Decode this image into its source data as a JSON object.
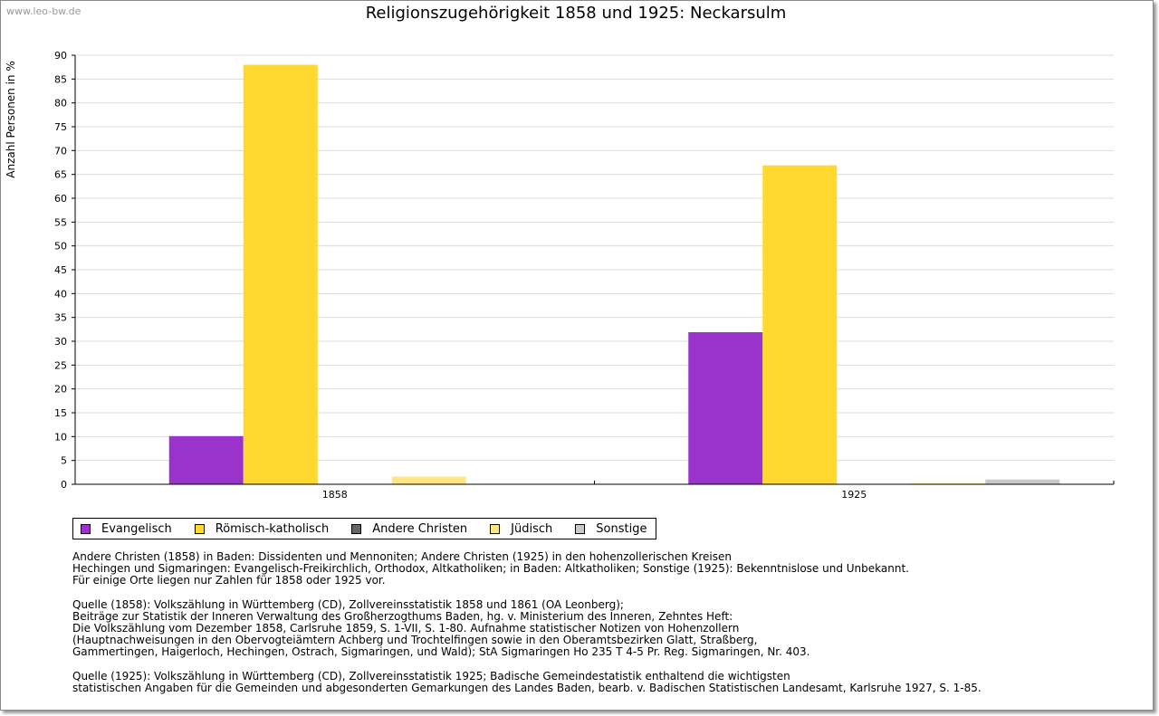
{
  "watermark": "www.leo-bw.de",
  "chart_data": {
    "type": "bar",
    "title": "Religionszugehörigkeit 1858 und 1925: Neckarsulm",
    "xlabel": "",
    "ylabel": "Anzahl Personen in %",
    "ylim": [
      0,
      90
    ],
    "ytick_step": 5,
    "grid": true,
    "categories": [
      "1858",
      "1925"
    ],
    "series": [
      {
        "name": "Evangelisch",
        "color": "#9933cc",
        "values": [
          10.1,
          31.9
        ]
      },
      {
        "name": "Römisch-katholisch",
        "color": "#ffd830",
        "values": [
          88.0,
          66.9
        ]
      },
      {
        "name": "Andere Christen",
        "color": "#666666",
        "values": [
          0.0,
          0.0
        ]
      },
      {
        "name": "Jüdisch",
        "color": "#ffe680",
        "values": [
          1.6,
          0.2
        ]
      },
      {
        "name": "Sonstige",
        "color": "#c8c8c8",
        "values": [
          0.0,
          1.0
        ]
      }
    ],
    "legend_position": "bottom-left"
  },
  "notes": [
    [
      "Andere Christen (1858) in Baden: Dissidenten und Mennoniten; Andere Christen (1925) in den hohenzollerischen Kreisen",
      "Hechingen und Sigmaringen: Evangelisch-Freikirchlich, Orthodox, Altkatholiken; in Baden: Altkatholiken; Sonstige (1925): Bekenntnislose und Unbekannt.",
      "Für einige Orte liegen nur Zahlen für 1858 oder 1925 vor."
    ],
    [
      "Quelle (1858): Volkszählung in Württemberg (CD), Zollvereinsstatistik 1858 und 1861 (OA Leonberg);",
      "Beiträge zur Statistik der Inneren Verwaltung des Großherzogthums Baden, hg. v. Ministerium des Inneren, Zehntes Heft:",
      "Die Volkszählung vom Dezember 1858, Carlsruhe 1859, S. 1-VII, S. 1-80. Aufnahme statistischer Notizen von Hohenzollern",
      "(Hauptnachweisungen in den Obervogteiämtern Achberg und Trochtelfingen sowie in den Oberamtsbezirken Glatt, Straßberg,",
      "Gammertingen, Haigerloch, Hechingen, Ostrach, Sigmaringen, und Wald); StA Sigmaringen Ho 235 T 4-5 Pr. Reg. Sigmaringen, Nr. 403."
    ],
    [
      "Quelle (1925): Volkszählung in Württemberg (CD), Zollvereinsstatistik 1925; Badische Gemeindestatistik enthaltend die wichtigsten",
      "statistischen Angaben für die Gemeinden und abgesonderten Gemarkungen des Landes Baden, bearb. v. Badischen Statistischen Landesamt, Karlsruhe 1927, S. 1-85."
    ]
  ]
}
